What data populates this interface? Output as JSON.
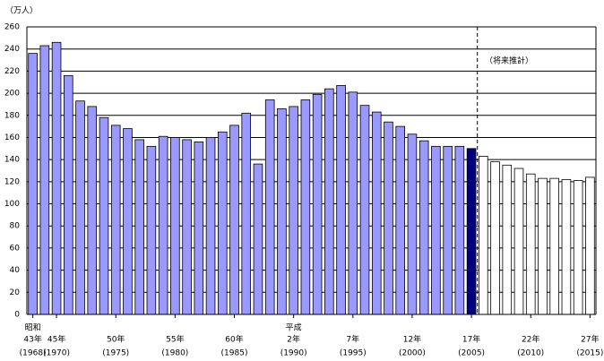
{
  "chart_data": {
    "type": "bar",
    "y_label": "（万人）",
    "annotation": "（将来推計）",
    "ylim": [
      0,
      260
    ],
    "yticks": [
      0,
      20,
      40,
      60,
      80,
      100,
      120,
      140,
      160,
      180,
      200,
      220,
      240,
      260
    ],
    "grid": true,
    "era": [
      "昭和",
      null,
      null,
      null,
      null,
      null,
      null,
      null,
      null,
      null,
      null,
      null,
      null,
      null,
      null,
      null,
      null,
      null,
      null,
      null,
      null,
      null,
      "平成",
      null,
      null,
      null,
      null,
      null,
      null,
      null,
      null,
      null,
      null,
      null,
      null,
      null,
      null,
      null,
      null,
      null,
      null,
      null,
      null,
      null,
      null,
      null,
      null,
      null
    ],
    "categories": [
      "43年",
      null,
      "45年",
      null,
      null,
      null,
      null,
      "50年",
      null,
      null,
      null,
      null,
      "55年",
      null,
      null,
      null,
      null,
      "60年",
      null,
      null,
      null,
      null,
      "2年",
      null,
      null,
      null,
      null,
      "7年",
      null,
      null,
      null,
      null,
      "12年",
      null,
      null,
      null,
      null,
      "17年",
      null,
      null,
      null,
      null,
      "22年",
      null,
      null,
      null,
      null,
      "27年"
    ],
    "years": [
      "(1968)",
      null,
      "(1970)",
      null,
      null,
      null,
      null,
      "(1975)",
      null,
      null,
      null,
      null,
      "(1980)",
      null,
      null,
      null,
      null,
      "(1985)",
      null,
      null,
      null,
      null,
      "(1990)",
      null,
      null,
      null,
      null,
      "(1995)",
      null,
      null,
      null,
      null,
      "(2000)",
      null,
      null,
      null,
      null,
      "(2005)",
      null,
      null,
      null,
      null,
      "(2010)",
      null,
      null,
      null,
      null,
      "(2015)"
    ],
    "values": [
      236,
      243,
      246,
      216,
      193,
      188,
      178,
      171,
      168,
      158,
      152,
      161,
      160,
      158,
      156,
      160,
      165,
      171,
      182,
      136,
      194,
      186,
      188,
      194,
      199,
      204,
      207,
      201,
      189,
      183,
      174,
      170,
      163,
      157,
      152,
      152,
      152,
      150,
      143,
      138,
      135,
      132,
      127,
      123,
      123,
      122,
      121,
      124
    ],
    "colors": [
      "#9999ff",
      "#9999ff",
      "#9999ff",
      "#9999ff",
      "#9999ff",
      "#9999ff",
      "#9999ff",
      "#9999ff",
      "#9999ff",
      "#9999ff",
      "#9999ff",
      "#9999ff",
      "#9999ff",
      "#9999ff",
      "#9999ff",
      "#9999ff",
      "#9999ff",
      "#9999ff",
      "#9999ff",
      "#9999ff",
      "#9999ff",
      "#9999ff",
      "#9999ff",
      "#9999ff",
      "#9999ff",
      "#9999ff",
      "#9999ff",
      "#9999ff",
      "#9999ff",
      "#9999ff",
      "#9999ff",
      "#9999ff",
      "#9999ff",
      "#9999ff",
      "#9999ff",
      "#9999ff",
      "#9999ff",
      "#000080",
      "#ffffff",
      "#ffffff",
      "#ffffff",
      "#ffffff",
      "#ffffff",
      "#ffffff",
      "#ffffff",
      "#ffffff",
      "#ffffff",
      "#ffffff"
    ]
  }
}
